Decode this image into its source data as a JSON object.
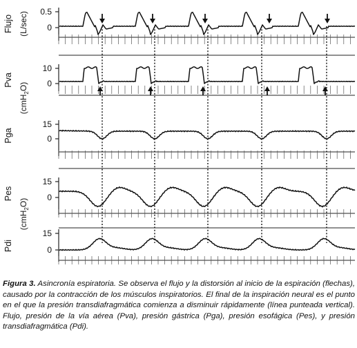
{
  "panels": [
    {
      "id": "flujo",
      "label": "Flujo",
      "unit_parts": [
        "(L/sec)"
      ],
      "ticks": [
        {
          "value": 0.5,
          "text": "0.5"
        },
        {
          "value": 0,
          "text": "0"
        }
      ],
      "arrow_dir": "down"
    },
    {
      "id": "pva",
      "label": "Pva",
      "unit_parts": [
        "(cmH",
        "2",
        "O)"
      ],
      "ticks": [
        {
          "value": 10,
          "text": "10"
        },
        {
          "value": 0,
          "text": "0"
        }
      ],
      "arrow_dir": "up"
    },
    {
      "id": "pga",
      "label": "Pga",
      "unit_parts": [],
      "ticks": [
        {
          "value": 15,
          "text": "15"
        },
        {
          "value": 0,
          "text": "0"
        }
      ],
      "arrow_dir": null
    },
    {
      "id": "pes",
      "label": "Pes",
      "unit_parts": [
        "(cmH",
        "2",
        "O)"
      ],
      "ticks": [
        {
          "value": 15,
          "text": "15"
        },
        {
          "value": 0,
          "text": "0"
        }
      ],
      "arrow_dir": null
    },
    {
      "id": "pdi",
      "label": "Pdi",
      "unit_parts": [],
      "ticks": [
        {
          "value": 15,
          "text": "15"
        },
        {
          "value": 0,
          "text": "0"
        }
      ],
      "arrow_dir": null
    }
  ],
  "breath_count": 5,
  "caption": {
    "title": "Figura 3.",
    "text": " Asincronía espiratoria. Se observa el flujo y la distorsión al inicio de la espiración (flechas), causado por la contracción de los músculos inspiratorios. El final de la inspiración neural es el punto en el que la presión transdiafragmática comienza a disminuir rápidamente (línea punteada vertical). Flujo, presión de la vía aérea (Pva), presión gástrica (Pga), presión esofágica (Pes), y presión transdiafragmática (Pdi)."
  }
}
